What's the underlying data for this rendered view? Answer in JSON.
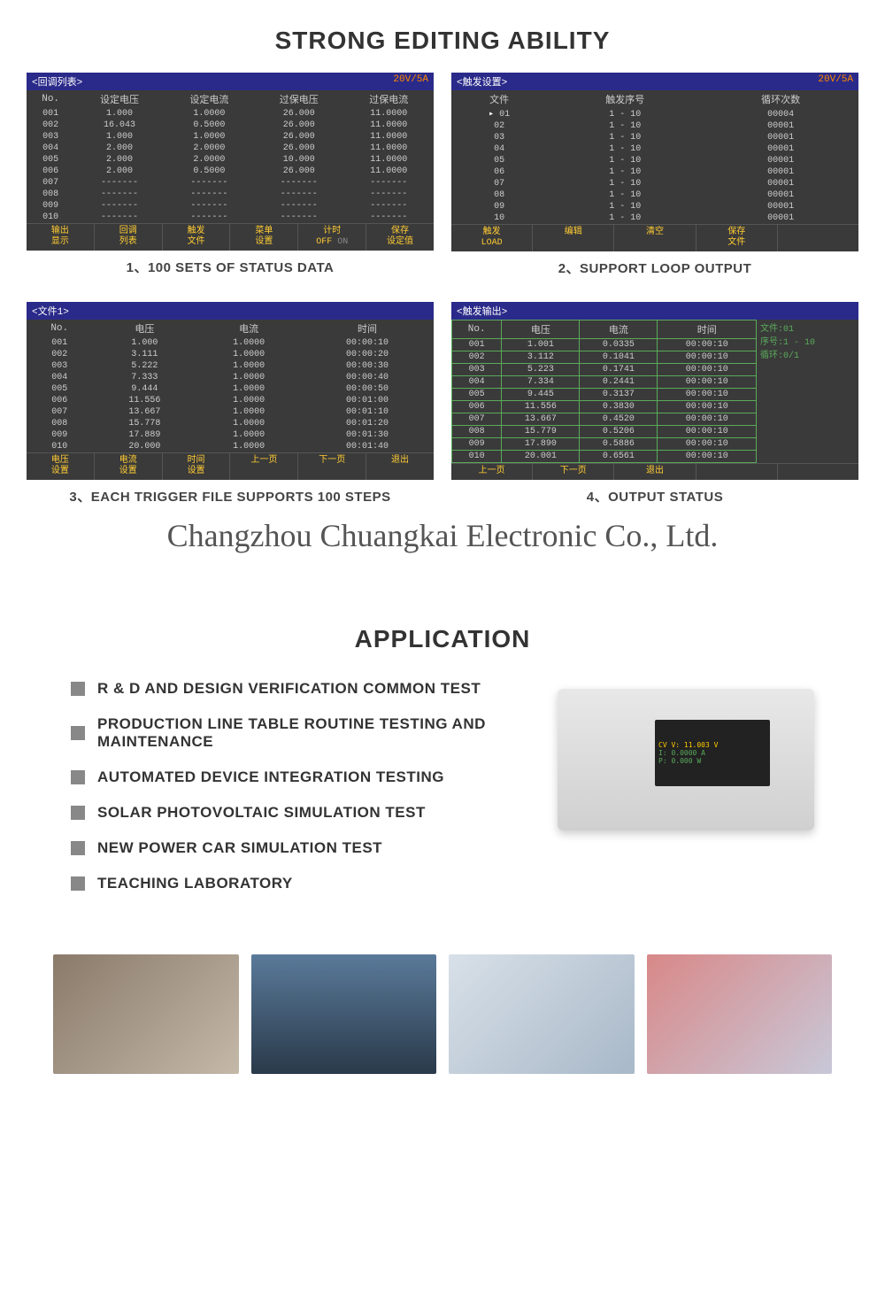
{
  "titles": {
    "main": "STRONG EDITING ABILITY",
    "app": "APPLICATION",
    "watermark": "Changzhou Chuangkai Electronic Co., Ltd."
  },
  "screen1": {
    "header": "<回调列表>",
    "rating": "20V/5A",
    "cols": [
      "No.",
      "设定电压",
      "设定电流",
      "过保电压",
      "过保电流"
    ],
    "rows": [
      [
        "001",
        "1.000",
        "1.0000",
        "26.000",
        "11.0000"
      ],
      [
        "002",
        "16.043",
        "0.5000",
        "26.000",
        "11.0000"
      ],
      [
        "003",
        "1.000",
        "1.0000",
        "26.000",
        "11.0000"
      ],
      [
        "004",
        "2.000",
        "2.0000",
        "26.000",
        "11.0000"
      ],
      [
        "005",
        "2.000",
        "2.0000",
        "10.000",
        "11.0000"
      ],
      [
        "006",
        "2.000",
        "0.5000",
        "26.000",
        "11.0000"
      ],
      [
        "007",
        "-------",
        "-------",
        "-------",
        "-------"
      ],
      [
        "008",
        "-------",
        "-------",
        "-------",
        "-------"
      ],
      [
        "009",
        "-------",
        "-------",
        "-------",
        "-------"
      ],
      [
        "010",
        "-------",
        "-------",
        "-------",
        "-------"
      ]
    ],
    "footer": [
      "输出\n显示",
      "回调\n列表",
      "触发\n文件",
      "菜单\n设置",
      "计时\nOFF ON",
      "保存\n设定值"
    ],
    "caption": "1、100 SETS OF STATUS DATA"
  },
  "screen2": {
    "header": "<触发设置>",
    "rating": "20V/5A",
    "cols": [
      "文件",
      "触发序号",
      "循环次数"
    ],
    "rows": [
      [
        "01",
        "1 - 10",
        "00004"
      ],
      [
        "02",
        "1 - 10",
        "00001"
      ],
      [
        "03",
        "1 - 10",
        "00001"
      ],
      [
        "04",
        "1 - 10",
        "00001"
      ],
      [
        "05",
        "1 - 10",
        "00001"
      ],
      [
        "06",
        "1 - 10",
        "00001"
      ],
      [
        "07",
        "1 - 10",
        "00001"
      ],
      [
        "08",
        "1 - 10",
        "00001"
      ],
      [
        "09",
        "1 - 10",
        "00001"
      ],
      [
        "10",
        "1 - 10",
        "00001"
      ]
    ],
    "footer": [
      "触发\nLOAD",
      "编辑",
      "清空",
      "保存\n文件",
      ""
    ],
    "caption": "2、SUPPORT LOOP OUTPUT"
  },
  "screen3": {
    "header": "<文件1>",
    "cols": [
      "No.",
      "电压",
      "电流",
      "时间"
    ],
    "rows": [
      [
        "001",
        "1.000",
        "1.0000",
        "00:00:10"
      ],
      [
        "002",
        "3.111",
        "1.0000",
        "00:00:20"
      ],
      [
        "003",
        "5.222",
        "1.0000",
        "00:00:30"
      ],
      [
        "004",
        "7.333",
        "1.0000",
        "00:00:40"
      ],
      [
        "005",
        "9.444",
        "1.0000",
        "00:00:50"
      ],
      [
        "006",
        "11.556",
        "1.0000",
        "00:01:00"
      ],
      [
        "007",
        "13.667",
        "1.0000",
        "00:01:10"
      ],
      [
        "008",
        "15.778",
        "1.0000",
        "00:01:20"
      ],
      [
        "009",
        "17.889",
        "1.0000",
        "00:01:30"
      ],
      [
        "010",
        "20.000",
        "1.0000",
        "00:01:40"
      ]
    ],
    "footer": [
      "电压\n设置",
      "电流\n设置",
      "时间\n设置",
      "上一页",
      "下一页",
      "退出"
    ],
    "caption": "3、EACH TRIGGER FILE SUPPORTS 100 STEPS"
  },
  "screen4": {
    "header": "<触发输出>",
    "cols": [
      "No.",
      "电压",
      "电流",
      "时间"
    ],
    "rows": [
      [
        "001",
        "1.001",
        "0.0335",
        "00:00:10"
      ],
      [
        "002",
        "3.112",
        "0.1041",
        "00:00:10"
      ],
      [
        "003",
        "5.223",
        "0.1741",
        "00:00:10"
      ],
      [
        "004",
        "7.334",
        "0.2441",
        "00:00:10"
      ],
      [
        "005",
        "9.445",
        "0.3137",
        "00:00:10"
      ],
      [
        "006",
        "11.556",
        "0.3830",
        "00:00:10"
      ],
      [
        "007",
        "13.667",
        "0.4520",
        "00:00:10"
      ],
      [
        "008",
        "15.779",
        "0.5206",
        "00:00:10"
      ],
      [
        "009",
        "17.890",
        "0.5886",
        "00:00:10"
      ],
      [
        "010",
        "20.001",
        "0.6561",
        "00:00:10"
      ]
    ],
    "side": [
      "文件:01",
      "序号:1 - 10",
      "循环:0/1"
    ],
    "footer": [
      "上一页",
      "下一页",
      "退出",
      "",
      ""
    ],
    "caption": "4、OUTPUT STATUS"
  },
  "apps": [
    "R & D AND DESIGN VERIFICATION COMMON TEST",
    "PRODUCTION LINE TABLE ROUTINE TESTING AND MAINTENANCE",
    "AUTOMATED DEVICE INTEGRATION TESTING",
    "SOLAR PHOTOVOLTAIC SIMULATION TEST",
    "NEW POWER CAR SIMULATION TEST",
    "TEACHING LABORATORY"
  ],
  "device": {
    "l1": "CV  V: 11.003  V",
    "l2": "    I: 0.0000  A",
    "l3": "    P: 0.000   W"
  }
}
